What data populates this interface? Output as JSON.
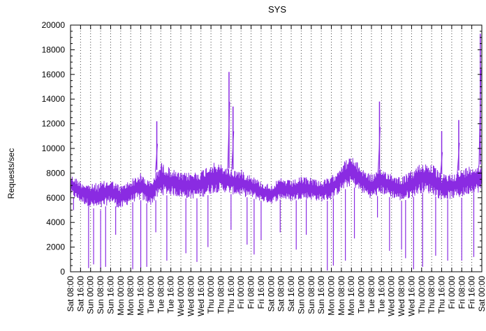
{
  "chart_data": {
    "type": "line",
    "title": "SYS",
    "xlabel": "",
    "ylabel": "Requests/sec",
    "ylim": [
      0,
      20000
    ],
    "yticks": [
      0,
      2000,
      4000,
      6000,
      8000,
      10000,
      12000,
      14000,
      16000,
      18000,
      20000
    ],
    "ytick_labels": [
      "0",
      "2000",
      "4000",
      "6000",
      "8000",
      "10000",
      "12000",
      "14000",
      "16000",
      "18000",
      "20000"
    ],
    "xtick_labels": [
      "Sat 08:00",
      "Sat 16:00",
      "Sun 00:00",
      "Sun 08:00",
      "Sun 16:00",
      "Mon 00:00",
      "Mon 08:00",
      "Mon 16:00",
      "Tue 00:00",
      "Tue 08:00",
      "Tue 16:00",
      "Wed 00:00",
      "Wed 08:00",
      "Wed 16:00",
      "Thu 00:00",
      "Thu 08:00",
      "Thu 16:00",
      "Fri 00:00",
      "Fri 08:00",
      "Fri 16:00",
      "Sat 00:00",
      "Sat 08:00",
      "Sat 16:00",
      "Sun 00:00",
      "Sun 08:00",
      "Sun 16:00",
      "Mon 00:00",
      "Mon 08:00",
      "Mon 16:00",
      "Tue 00:00",
      "Tue 08:00",
      "Tue 16:00",
      "Wed 00:00",
      "Wed 08:00",
      "Wed 16:00",
      "Thu 00:00",
      "Thu 08:00",
      "Thu 16:00",
      "Fri 00:00",
      "Fri 08:00",
      "Fri 16:00",
      "Sat 00:00"
    ],
    "grid": true,
    "series": [
      {
        "color": "#8a2be2",
        "band_low": [
          6200,
          5600,
          5200,
          5000,
          5600,
          5000,
          5600,
          5800,
          5400,
          6200,
          6200,
          6000,
          5900,
          6000,
          6300,
          6500,
          6300,
          6100,
          6000,
          5700,
          5500,
          5900,
          5700,
          5900,
          5800,
          5700,
          5800,
          6500,
          7000,
          6400,
          5900,
          6300,
          6000,
          5700,
          6000,
          6400,
          6300,
          5800,
          5900,
          6000,
          6400
        ],
        "band_high": [
          7900,
          7400,
          7100,
          7300,
          7500,
          7000,
          7500,
          8000,
          7300,
          8900,
          8400,
          8000,
          8100,
          8200,
          8900,
          8700,
          8300,
          8300,
          7900,
          7300,
          7100,
          7600,
          7400,
          7700,
          7700,
          7400,
          7700,
          8800,
          9400,
          8500,
          7900,
          8400,
          8000,
          7700,
          8200,
          8900,
          8800,
          7900,
          8000,
          8300,
          8700
        ],
        "peaks": [
          [
            8.6,
            12200
          ],
          [
            15.8,
            16200
          ],
          [
            16.2,
            13400
          ],
          [
            30.8,
            13800
          ],
          [
            37.0,
            11400
          ],
          [
            38.7,
            12300
          ],
          [
            40.85,
            19300
          ]
        ],
        "dips": [
          [
            0.3,
            5000
          ],
          [
            1.8,
            300
          ],
          [
            2.3,
            600
          ],
          [
            3.0,
            200
          ],
          [
            3.5,
            400
          ],
          [
            4.5,
            3000
          ],
          [
            6.2,
            200
          ],
          [
            7.0,
            300
          ],
          [
            7.6,
            400
          ],
          [
            8.5,
            3200
          ],
          [
            9.6,
            900
          ],
          [
            11.5,
            1500
          ],
          [
            12.6,
            800
          ],
          [
            13.7,
            2000
          ],
          [
            16.0,
            3400
          ],
          [
            17.6,
            2200
          ],
          [
            18.3,
            1400
          ],
          [
            19.0,
            2600
          ],
          [
            20.9,
            3200
          ],
          [
            22.5,
            1800
          ],
          [
            23.5,
            3000
          ],
          [
            25.6,
            100
          ],
          [
            26.2,
            500
          ],
          [
            27.4,
            900
          ],
          [
            28.3,
            2700
          ],
          [
            30.6,
            4400
          ],
          [
            31.8,
            1700
          ],
          [
            33.0,
            1800
          ],
          [
            33.4,
            1100
          ],
          [
            34.2,
            200
          ],
          [
            35.1,
            400
          ],
          [
            36.4,
            1300
          ],
          [
            37.6,
            900
          ],
          [
            39.0,
            900
          ],
          [
            40.2,
            1200
          ]
        ]
      }
    ]
  }
}
